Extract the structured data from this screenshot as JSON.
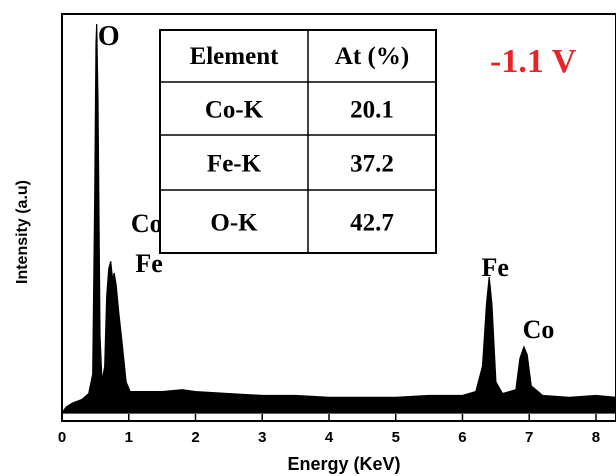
{
  "chart_data": {
    "type": "line",
    "xlabel": "Energy (KeV)",
    "ylabel": "Intensity (a.u)",
    "xlim": [
      0,
      8.3
    ],
    "ylim": [
      0,
      100
    ],
    "x_ticks": [
      "0",
      "1",
      "2",
      "3",
      "4",
      "5",
      "6",
      "7",
      "8"
    ],
    "grid": false,
    "annotation": "-1.1 V",
    "peaks": [
      {
        "label": "O",
        "x": 0.52,
        "y": 100
      },
      {
        "label": "Co",
        "x": 0.73,
        "y": 39
      },
      {
        "label": "Fe",
        "x": 0.78,
        "y": 36
      },
      {
        "label": "Fe",
        "x": 6.4,
        "y": 35
      },
      {
        "label": "Co",
        "x": 6.93,
        "y": 17
      }
    ],
    "spectrum": [
      [
        0.0,
        0.0
      ],
      [
        0.06,
        1.5
      ],
      [
        0.15,
        2.5
      ],
      [
        0.3,
        3.5
      ],
      [
        0.4,
        5.0
      ],
      [
        0.46,
        10.0
      ],
      [
        0.49,
        55.0
      ],
      [
        0.51,
        95.0
      ],
      [
        0.52,
        100.0
      ],
      [
        0.54,
        80.0
      ],
      [
        0.57,
        20.0
      ],
      [
        0.6,
        8.0
      ],
      [
        0.64,
        12.0
      ],
      [
        0.67,
        30.0
      ],
      [
        0.7,
        37.0
      ],
      [
        0.73,
        39.0
      ],
      [
        0.76,
        34.0
      ],
      [
        0.78,
        36.0
      ],
      [
        0.81,
        33.0
      ],
      [
        0.85,
        26.0
      ],
      [
        0.9,
        18.0
      ],
      [
        0.96,
        8.0
      ],
      [
        1.02,
        5.5
      ],
      [
        1.2,
        5.5
      ],
      [
        1.5,
        5.5
      ],
      [
        1.8,
        6.0
      ],
      [
        2.0,
        5.5
      ],
      [
        2.5,
        5.0
      ],
      [
        3.0,
        4.5
      ],
      [
        3.5,
        4.5
      ],
      [
        4.0,
        4.0
      ],
      [
        4.5,
        4.0
      ],
      [
        5.0,
        4.0
      ],
      [
        5.5,
        4.5
      ],
      [
        6.0,
        4.5
      ],
      [
        6.2,
        5.5
      ],
      [
        6.3,
        12.0
      ],
      [
        6.36,
        28.0
      ],
      [
        6.4,
        35.0
      ],
      [
        6.44,
        28.0
      ],
      [
        6.5,
        8.0
      ],
      [
        6.6,
        5.0
      ],
      [
        6.8,
        6.0
      ],
      [
        6.86,
        14.0
      ],
      [
        6.92,
        17.0
      ],
      [
        6.97,
        15.0
      ],
      [
        7.03,
        7.0
      ],
      [
        7.2,
        4.5
      ],
      [
        7.6,
        4.0
      ],
      [
        8.0,
        4.5
      ],
      [
        8.3,
        4.0
      ]
    ],
    "table": {
      "headers": [
        "Element",
        "At (%)"
      ],
      "rows": [
        [
          "Co-K",
          "20.1"
        ],
        [
          "Fe-K",
          "37.2"
        ],
        [
          "O-K",
          "42.7"
        ]
      ]
    }
  }
}
